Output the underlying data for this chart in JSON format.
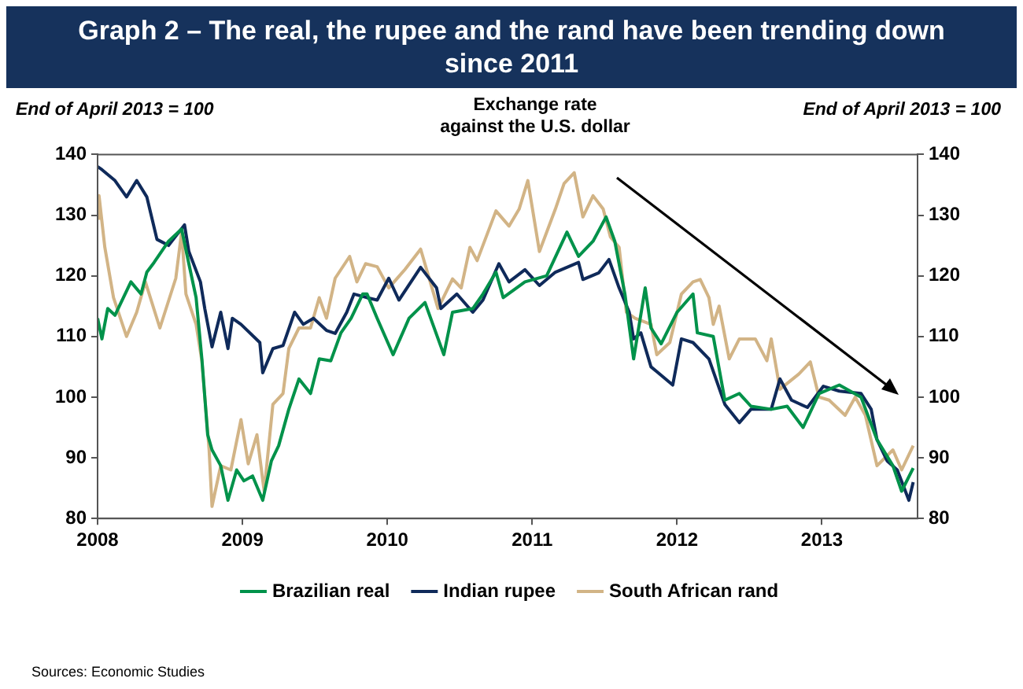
{
  "chart_data": {
    "type": "line",
    "title": "Graph 2 – The real, the rupee and the rand have been trending down since 2011",
    "subtitle": "Exchange rate\nagainst the U.S. dollar",
    "ylabel": "End of April 2013 = 100",
    "y2label": "End of April 2013 = 100",
    "annotations": [
      "Sources: Economic Studies"
    ],
    "xlim": [
      2008,
      2013.66
    ],
    "xticks": [
      2008,
      2009,
      2010,
      2011,
      2012,
      2013
    ],
    "ylim": [
      80,
      140
    ],
    "yticks": [
      80,
      90,
      100,
      110,
      120,
      130,
      140
    ],
    "y2lim": [
      80,
      140
    ],
    "y2ticks": [
      80,
      90,
      100,
      110,
      120,
      130,
      140
    ],
    "grid": false,
    "legend": "bottom",
    "marker": "none",
    "line_style": "solid",
    "series": [
      {
        "name": "Brazilian real",
        "color": "#00924a",
        "x": [
          2008.0,
          2008.03,
          2008.07,
          2008.12,
          2008.23,
          2008.3,
          2008.34,
          2008.39,
          2008.49,
          2008.58,
          2008.63,
          2008.68,
          2008.72,
          2008.76,
          2008.79,
          2008.85,
          2008.9,
          2008.96,
          2009.01,
          2009.07,
          2009.14,
          2009.2,
          2009.25,
          2009.32,
          2009.39,
          2009.47,
          2009.53,
          2009.61,
          2009.68,
          2009.75,
          2009.83,
          2009.86,
          2009.93,
          2010.04,
          2010.15,
          2010.26,
          2010.39,
          2010.45,
          2010.59,
          2010.66,
          2010.75,
          2010.8,
          2010.95,
          2011.1,
          2011.24,
          2011.32,
          2011.42,
          2011.51,
          2011.57,
          2011.64,
          2011.7,
          2011.78,
          2011.82,
          2011.89,
          2012.0,
          2012.11,
          2012.14,
          2012.25,
          2012.33,
          2012.43,
          2012.51,
          2012.65,
          2012.76,
          2012.87,
          2012.98,
          2013.12,
          2013.27,
          2013.38,
          2013.49,
          2013.55,
          2013.63
        ],
        "values": [
          113,
          109.6,
          114.6,
          113.5,
          119,
          117,
          120.6,
          122.2,
          125.7,
          127.7,
          122,
          116.4,
          106.3,
          93.8,
          91.3,
          88.7,
          83,
          88,
          86.2,
          87,
          83,
          89.5,
          92,
          98,
          103,
          100.6,
          106.3,
          106,
          110.6,
          113,
          117,
          117,
          113,
          107,
          113,
          115.6,
          107,
          114,
          114.6,
          117,
          120.6,
          116.4,
          119,
          120,
          127.2,
          123.2,
          125.7,
          129.7,
          125.7,
          117,
          106.3,
          118,
          111.4,
          108.8,
          114,
          117,
          110.6,
          110,
          99.5,
          100.6,
          98.5,
          98,
          98.5,
          95,
          100.6,
          102,
          100,
          93,
          88.7,
          84.5,
          88.3
        ]
      },
      {
        "name": "Indian rupee",
        "color": "#0f2a5a",
        "x": [
          2008.0,
          2008.03,
          2008.12,
          2008.2,
          2008.27,
          2008.34,
          2008.38,
          2008.41,
          2008.49,
          2008.6,
          2008.63,
          2008.71,
          2008.74,
          2008.79,
          2008.85,
          2008.9,
          2008.93,
          2008.99,
          2009.12,
          2009.14,
          2009.21,
          2009.28,
          2009.36,
          2009.42,
          2009.49,
          2009.58,
          2009.64,
          2009.72,
          2009.77,
          2009.86,
          2009.93,
          2010.01,
          2010.08,
          2010.23,
          2010.34,
          2010.37,
          2010.48,
          2010.59,
          2010.66,
          2010.77,
          2010.84,
          2010.95,
          2011.05,
          2011.16,
          2011.32,
          2011.35,
          2011.46,
          2011.53,
          2011.6,
          2011.67,
          2011.7,
          2011.75,
          2011.82,
          2011.87,
          2011.97,
          2012.03,
          2012.11,
          2012.22,
          2012.33,
          2012.43,
          2012.51,
          2012.65,
          2012.71,
          2012.79,
          2012.9,
          2013.01,
          2013.12,
          2013.27,
          2013.34,
          2013.38,
          2013.45,
          2013.52,
          2013.6,
          2013.63
        ],
        "values": [
          138,
          137.5,
          135.7,
          133,
          135.7,
          133,
          129,
          126,
          125,
          128.4,
          124,
          119,
          114.6,
          108.3,
          114,
          108,
          113,
          112,
          109,
          104,
          108,
          108.5,
          114,
          112,
          113,
          111,
          110.5,
          114,
          117,
          116.4,
          116,
          119.6,
          116,
          121.4,
          118,
          114.6,
          117,
          114,
          116,
          122,
          119,
          121,
          118.4,
          120.6,
          122.2,
          119.4,
          120.5,
          122.7,
          118,
          114,
          109.6,
          110.6,
          105,
          104,
          102,
          109.6,
          109,
          106.3,
          98.8,
          95.8,
          98,
          98,
          103,
          99.5,
          98.3,
          101.8,
          101,
          100.6,
          98,
          93,
          89.5,
          88,
          83,
          86
        ]
      },
      {
        "name": "South African rand",
        "color": "#d2b486",
        "x": [
          2008.0,
          2008.01,
          2008.05,
          2008.11,
          2008.2,
          2008.27,
          2008.33,
          2008.43,
          2008.54,
          2008.58,
          2008.61,
          2008.68,
          2008.72,
          2008.77,
          2008.79,
          2008.85,
          2008.92,
          2008.99,
          2009.04,
          2009.1,
          2009.15,
          2009.21,
          2009.28,
          2009.32,
          2009.39,
          2009.47,
          2009.53,
          2009.58,
          2009.64,
          2009.74,
          2009.79,
          2009.85,
          2009.93,
          2010.01,
          2010.12,
          2010.23,
          2010.35,
          2010.45,
          2010.51,
          2010.57,
          2010.62,
          2010.75,
          2010.84,
          2010.91,
          2010.97,
          2011.05,
          2011.16,
          2011.22,
          2011.29,
          2011.35,
          2011.42,
          2011.49,
          2011.54,
          2011.6,
          2011.65,
          2011.71,
          2011.82,
          2011.86,
          2011.95,
          2012.03,
          2012.11,
          2012.16,
          2012.22,
          2012.25,
          2012.29,
          2012.36,
          2012.43,
          2012.54,
          2012.62,
          2012.65,
          2012.71,
          2012.84,
          2012.92,
          2012.98,
          2013.05,
          2013.16,
          2013.23,
          2013.3,
          2013.38,
          2013.49,
          2013.55,
          2013.63
        ],
        "values": [
          129.5,
          133.2,
          124.7,
          116.4,
          110,
          114,
          119,
          111.4,
          119.6,
          127.2,
          117,
          112,
          106,
          91.3,
          82,
          88.7,
          88,
          96.3,
          89,
          93.8,
          84.5,
          98.8,
          100.6,
          108,
          111.4,
          111.4,
          116.4,
          113,
          119.6,
          123.2,
          119,
          122,
          121.5,
          118,
          121,
          124.4,
          114.6,
          119.5,
          118,
          124.7,
          122.5,
          130.7,
          128.2,
          131,
          135.7,
          124,
          131,
          135.2,
          137,
          129.7,
          133.2,
          131,
          126.4,
          124.7,
          114,
          113,
          112,
          107,
          109,
          117,
          119,
          119.4,
          116.4,
          112,
          115,
          106.3,
          109.6,
          109.6,
          106,
          109.6,
          101.3,
          103.8,
          105.8,
          100,
          99.5,
          97,
          100,
          97,
          88.7,
          91.3,
          88,
          92
        ]
      }
    ]
  }
}
